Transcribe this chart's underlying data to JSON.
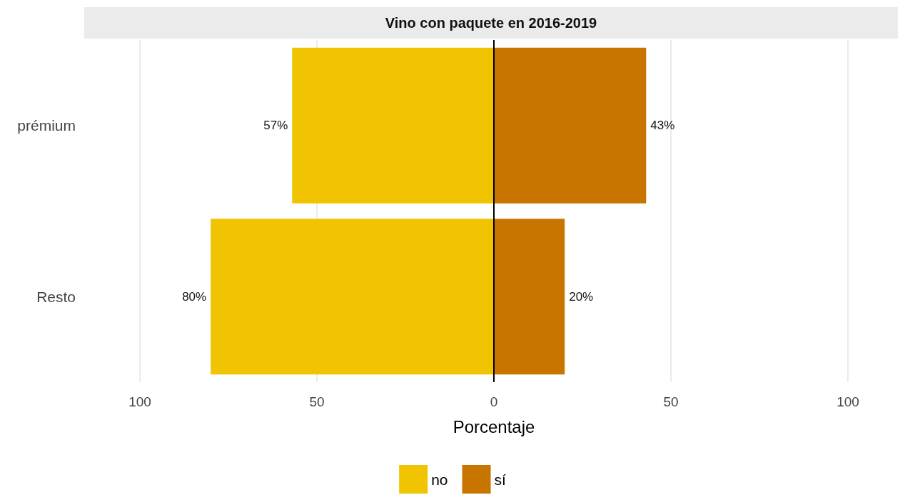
{
  "chart_data": {
    "type": "bar",
    "title": "Vino con paquete en 2016-2019",
    "xlabel": "Porcentaje",
    "categories": [
      "prémium",
      "Resto"
    ],
    "orientation": "horizontal",
    "series": [
      {
        "name": "no",
        "color": "#f0c400",
        "values": [
          57,
          80
        ],
        "base": [
          -57,
          -80
        ],
        "value_labels": [
          "57%",
          "80%"
        ]
      },
      {
        "name": "sí",
        "color": "#c87500",
        "values": [
          43,
          20
        ],
        "base": [
          0,
          0
        ],
        "value_labels": [
          "43%",
          "20%"
        ]
      }
    ],
    "xlim": [
      -100,
      100
    ],
    "xticks": [
      {
        "value": -100,
        "label": "100"
      },
      {
        "value": -50,
        "label": "50"
      },
      0,
      50,
      100
    ],
    "ref_lines": [
      {
        "axis": "x",
        "value": 0,
        "color": "#000000"
      }
    ],
    "grid": "x",
    "legend": "bottom"
  }
}
